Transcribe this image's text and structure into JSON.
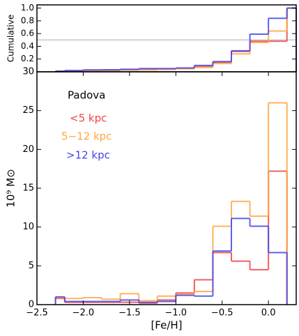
{
  "chart_data": [
    {
      "type": "histogram",
      "ylabel": "Cumulative",
      "bins": [
        -2.3,
        -2.2,
        -2.0,
        -1.8,
        -1.6,
        -1.4,
        -1.2,
        -1.0,
        -0.8,
        -0.6,
        -0.4,
        -0.2,
        0.0,
        0.2,
        0.3
      ],
      "series": [
        {
          "name": "<5 kpc",
          "color": "#ee4444",
          "values": [
            0.01,
            0.01,
            0.02,
            0.03,
            0.03,
            0.04,
            0.04,
            0.05,
            0.08,
            0.15,
            0.32,
            0.48,
            0.48,
            1
          ]
        },
        {
          "name": "5−12 kpc",
          "color": "#ffa640",
          "values": [
            0.01,
            0.01,
            0.02,
            0.02,
            0.03,
            0.03,
            0.04,
            0.05,
            0.07,
            0.13,
            0.28,
            0.46,
            0.64,
            1
          ]
        },
        {
          "name": ">12 kpc",
          "color": "#4444ee",
          "values": [
            0.01,
            0.02,
            0.03,
            0.03,
            0.04,
            0.05,
            0.05,
            0.06,
            0.1,
            0.16,
            0.33,
            0.59,
            0.84,
            1
          ]
        }
      ],
      "xlim": [
        -2.5,
        0.3
      ],
      "ylim": [
        0,
        1.05
      ],
      "yticks": [
        0.2,
        0.4,
        0.6,
        0.8,
        {
          "value": 1.0,
          "label": "1.0"
        }
      ],
      "reference_line": 0.5
    },
    {
      "type": "histogram",
      "xlabel": "[Fe/H]",
      "ylabel": "10⁹ M⊙",
      "annotation": "Padova",
      "bins": [
        -2.3,
        -2.2,
        -2.0,
        -1.8,
        -1.6,
        -1.4,
        -1.2,
        -1.0,
        -0.8,
        -0.6,
        -0.4,
        -0.2,
        0.0,
        0.2
      ],
      "series": [
        {
          "name": "<5 kpc",
          "color": "#ee4444",
          "values": [
            0.8,
            0.3,
            0.3,
            0.3,
            0.3,
            0.2,
            0.6,
            1.5,
            3.2,
            6.7,
            5.6,
            4.5,
            17.2
          ]
        },
        {
          "name": "5−12 kpc",
          "color": "#ffa640",
          "values": [
            0.9,
            0.8,
            0.9,
            0.7,
            1.4,
            0.5,
            1.1,
            1.3,
            1.7,
            10.1,
            13.3,
            11.4,
            26
          ]
        },
        {
          "name": ">12 kpc",
          "color": "#4444ee",
          "values": [
            1.0,
            0.4,
            0.4,
            0.4,
            0.6,
            0.3,
            0.4,
            1.2,
            1.1,
            6.9,
            11.1,
            10.1,
            6.7
          ]
        }
      ],
      "xlim": [
        -2.5,
        0.3
      ],
      "ylim": [
        0,
        30
      ],
      "xticks": [
        {
          "value": -2.5,
          "label": "−2.5"
        },
        {
          "value": -2.0,
          "label": "−2.0"
        },
        {
          "value": -1.5,
          "label": "−1.5"
        },
        {
          "value": -1.0,
          "label": "−1.0"
        },
        {
          "value": -0.5,
          "label": "−0.5"
        },
        {
          "value": 0.0,
          "label": "0.0"
        }
      ],
      "yticks": [
        0,
        5,
        10,
        15,
        20,
        25,
        30
      ]
    }
  ]
}
